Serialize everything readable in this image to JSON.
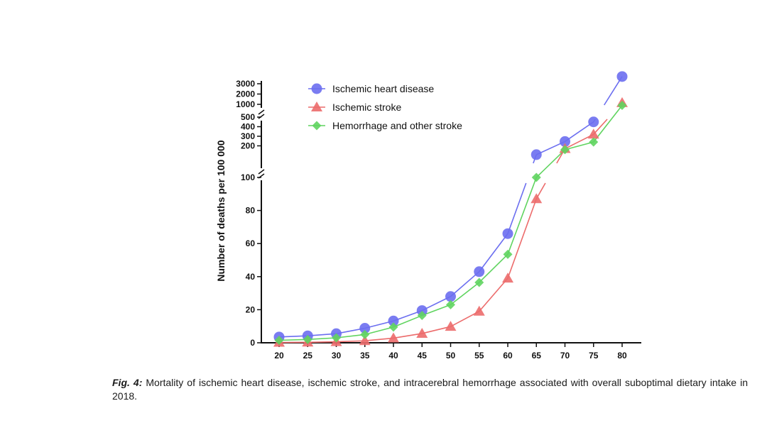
{
  "colors": {
    "heart": "#6b6ef0",
    "stroke": "#ec6b6b",
    "hemorrhage": "#5fd45f",
    "axis": "#111111"
  },
  "chart_data": {
    "type": "line",
    "ylabel": "Number of deaths per 100 000",
    "xlabel": "",
    "x": [
      20,
      25,
      30,
      35,
      40,
      45,
      50,
      55,
      60,
      65,
      70,
      75,
      80
    ],
    "y_segments": [
      {
        "range": [
          0,
          100
        ],
        "ticks": [
          0,
          20,
          40,
          60,
          80,
          100
        ]
      },
      {
        "range": [
          100,
          500
        ],
        "ticks": [
          200,
          300,
          400,
          500
        ]
      },
      {
        "range": [
          1000,
          3000
        ],
        "ticks": [
          1000,
          2000,
          3000
        ]
      }
    ],
    "axis_breaks": [
      100,
      500
    ],
    "legend_position": "top-left",
    "series": [
      {
        "name": "Ischemic heart disease",
        "marker": "circle",
        "color_key": "heart",
        "values": [
          3.5,
          4.2,
          5.5,
          8.8,
          13.2,
          19.5,
          28,
          43,
          66,
          108,
          245,
          450,
          3700
        ]
      },
      {
        "name": "Ischemic stroke",
        "marker": "triangle",
        "color_key": "stroke",
        "values": [
          0.2,
          0.3,
          0.6,
          1.2,
          2.8,
          5.6,
          9.8,
          19,
          39,
          87,
          170,
          320,
          1150
        ]
      },
      {
        "name": "Hemorrhage and other stroke",
        "marker": "diamond",
        "color_key": "hemorrhage",
        "values": [
          1.5,
          2.0,
          3.0,
          5.0,
          9.5,
          16.5,
          23,
          36.5,
          53.5,
          100,
          160,
          240,
          900
        ]
      }
    ]
  },
  "caption": {
    "label": "Fig. 4:",
    "text": " Mortality of ischemic heart disease, ischemic stroke, and intracerebral hemorrhage associated with overall suboptimal dietary intake in 2018."
  }
}
